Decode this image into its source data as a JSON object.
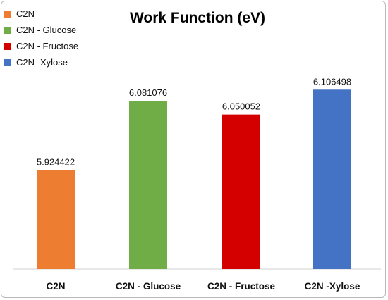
{
  "chart_data": {
    "type": "bar",
    "title": "Work Function (eV)",
    "categories": [
      "C2N",
      "C2N - Glucose",
      "C2N - Fructose",
      "C2N -Xylose"
    ],
    "values": [
      5.924422,
      6.081076,
      6.050052,
      6.106498
    ],
    "value_labels": [
      "5.924422",
      "6.081076",
      "6.050052",
      "6.106498"
    ],
    "colors": [
      "#ED7D31",
      "#70AD47",
      "#D40000",
      "#4472C4"
    ],
    "legend": {
      "placement": "top-left",
      "entries": [
        "C2N",
        "C2N - Glucose",
        "C2N - Fructose",
        "C2N -Xylose"
      ]
    },
    "xlabel": "",
    "ylabel": "",
    "ylim": [
      5.7,
      6.15
    ],
    "grid": false,
    "y_axis_visible": false
  }
}
